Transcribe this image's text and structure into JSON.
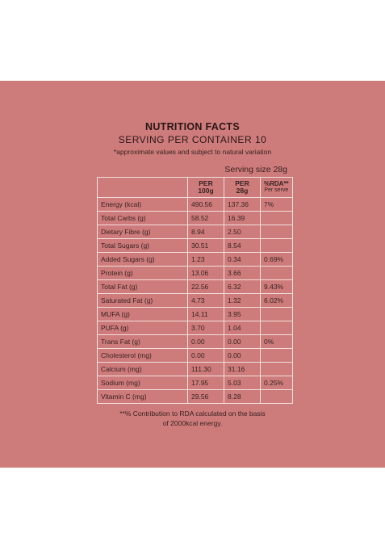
{
  "title": "NUTRITION FACTS",
  "subtitle": "SERVING PER CONTAINER 10",
  "note_top": "*approximate values and subject to natural variation",
  "serving_size": "Serving size 28g",
  "headers": {
    "per100_l1": "PER",
    "per100_l2": "100g",
    "per28_l1": "PER",
    "per28_l2": "28g",
    "rda_l1": "%RDA**",
    "rda_l2": "Per serve"
  },
  "rows": [
    {
      "nutrient": "Energy (kcal)",
      "per100": "490.56",
      "per28": "137.36",
      "rda": "7%"
    },
    {
      "nutrient": "Total Carbs (g)",
      "per100": "58.52",
      "per28": "16.39",
      "rda": ""
    },
    {
      "nutrient": "Dietary Fibre (g)",
      "per100": "8.94",
      "per28": "2.50",
      "rda": ""
    },
    {
      "nutrient": "Total Sugars (g)",
      "per100": "30.51",
      "per28": "8.54",
      "rda": ""
    },
    {
      "nutrient": "Added Sugars (g)",
      "per100": "1.23",
      "per28": "0.34",
      "rda": "0.69%"
    },
    {
      "nutrient": "Protein (g)",
      "per100": "13.06",
      "per28": "3.66",
      "rda": ""
    },
    {
      "nutrient": "Total Fat (g)",
      "per100": "22.56",
      "per28": "6.32",
      "rda": "9.43%"
    },
    {
      "nutrient": "Saturated Fat (g)",
      "per100": "4.73",
      "per28": "1.32",
      "rda": "6.02%"
    },
    {
      "nutrient": "MUFA (g)",
      "per100": "14.11",
      "per28": "3.95",
      "rda": ""
    },
    {
      "nutrient": "PUFA (g)",
      "per100": "3.70",
      "per28": "1.04",
      "rda": ""
    },
    {
      "nutrient": "Trans Fat (g)",
      "per100": "0.00",
      "per28": "0.00",
      "rda": "0%"
    },
    {
      "nutrient": "Cholesterol (mg)",
      "per100": "0.00",
      "per28": "0.00",
      "rda": ""
    },
    {
      "nutrient": "Calcium (mg)",
      "per100": "111.30",
      "per28": "31.16",
      "rda": ""
    },
    {
      "nutrient": "Sodium (mg)",
      "per100": "17.95",
      "per28": "5.03",
      "rda": "0.25%"
    },
    {
      "nutrient": "Vitamin C (mg)",
      "per100": "29.56",
      "per28": "8.28",
      "rda": ""
    }
  ],
  "note_bottom_line1": "**% Contribution to RDA calculated on the basis",
  "note_bottom_line2": "of 2000kcal energy.",
  "colors": {
    "panel": "#cd7c7b",
    "background": "#ffffff",
    "table_lines": "#f3dedd",
    "text": "#3a2020"
  }
}
